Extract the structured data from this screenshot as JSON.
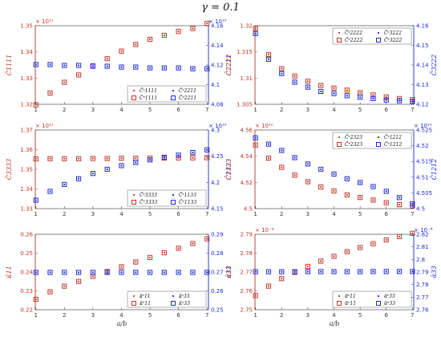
{
  "figure": {
    "title": "γ = 0.1",
    "xlabel": "a/b",
    "colors": {
      "left": "#c0392b",
      "right": "#1f2bd6",
      "axis": "#333333"
    }
  },
  "chart_data": [
    {
      "type": "scatter",
      "panel": "top-left",
      "x": [
        1,
        1.5,
        2,
        2.5,
        3,
        3.5,
        4,
        4.5,
        5,
        5.5,
        6,
        6.5,
        7
      ],
      "left_axis": {
        "label": "C̄1111",
        "ylim": [
          132000000000.0,
          135000000000.0
        ],
        "ticks": [
          "1.32",
          "1.33",
          "1.34",
          "1.35"
        ],
        "exponent": "× 10¹¹"
      },
      "right_axis": {
        "label": "C̄2211",
        "ylim": [
          40700000000.0,
          41650000000.0
        ],
        "ticks": [
          "4.08",
          "4.1",
          "4.12",
          "4.14",
          "4.16"
        ],
        "exponent": "× 10¹⁰"
      },
      "series": [
        {
          "name": "C̄ˢ1111",
          "axis": "left",
          "marker": "dot",
          "values": [
            131980000000.0,
            132430000000.0,
            132840000000.0,
            133120000000.0,
            133470000000.0,
            133740000000.0,
            134030000000.0,
            134280000000.0,
            134480000000.0,
            134630000000.0,
            134780000000.0,
            134890000000.0,
            135090000000.0
          ]
        },
        {
          "name": "C̄ᵉ1111",
          "axis": "left",
          "marker": "square",
          "values": [
            131980000000.0,
            132430000000.0,
            132840000000.0,
            133120000000.0,
            133470000000.0,
            133740000000.0,
            134030000000.0,
            134280000000.0,
            134480000000.0,
            134630000000.0,
            134780000000.0,
            134890000000.0,
            135090000000.0
          ]
        },
        {
          "name": "C̄ˢ2211",
          "axis": "right",
          "marker": "dot",
          "values": [
            41180000000.0,
            41180000000.0,
            41170000000.0,
            41170000000.0,
            41160000000.0,
            41160000000.0,
            41150000000.0,
            41150000000.0,
            41140000000.0,
            41140000000.0,
            41140000000.0,
            41130000000.0,
            41130000000.0
          ]
        },
        {
          "name": "C̄ᵉ2211",
          "axis": "right",
          "marker": "square",
          "values": [
            41180000000.0,
            41180000000.0,
            41170000000.0,
            41170000000.0,
            41160000000.0,
            41160000000.0,
            41150000000.0,
            41150000000.0,
            41140000000.0,
            41140000000.0,
            41140000000.0,
            41130000000.0,
            41130000000.0
          ]
        }
      ],
      "legend": "bottom-right"
    },
    {
      "type": "scatter",
      "panel": "top-right",
      "x": [
        1,
        1.5,
        2,
        2.5,
        3,
        3.5,
        4,
        4.5,
        5,
        5.5,
        6,
        6.5,
        7
      ],
      "left_axis": {
        "label": "C̄2222",
        "ylim": [
          130500000000.0,
          132000000000.0
        ],
        "ticks": [
          "1.305",
          "1.31",
          "1.315",
          "1.32"
        ],
        "exponent": ""
      },
      "right_axis": {
        "label": "C̄3222",
        "ylim": [
          41150000000.0,
          41700000000.0
        ],
        "ticks": [
          "4.12",
          "4.13",
          "4.14",
          "4.15",
          "4.16"
        ],
        "exponent": ""
      },
      "series": [
        {
          "name": "C̄ˢ2222",
          "axis": "left",
          "marker": "dot",
          "values": [
            131950000000.0,
            131450000000.0,
            131180000000.0,
            131040000000.0,
            130940000000.0,
            130860000000.0,
            130810000000.0,
            130770000000.0,
            130720000000.0,
            130680000000.0,
            130640000000.0,
            130610000000.0,
            130590000000.0
          ]
        },
        {
          "name": "C̄ᵉ2222",
          "axis": "left",
          "marker": "square",
          "values": [
            131950000000.0,
            131450000000.0,
            131180000000.0,
            131040000000.0,
            130940000000.0,
            130860000000.0,
            130810000000.0,
            130770000000.0,
            130720000000.0,
            130680000000.0,
            130640000000.0,
            130610000000.0,
            130590000000.0
          ]
        },
        {
          "name": "C̄ˢ3222",
          "axis": "right",
          "marker": "dot",
          "values": [
            41645000000.0,
            41465000000.0,
            41365000000.0,
            41305000000.0,
            41270000000.0,
            41240000000.0,
            41225000000.0,
            41210000000.0,
            41200000000.0,
            41190000000.0,
            41180000000.0,
            41175000000.0,
            41170000000.0
          ]
        },
        {
          "name": "C̄ᵉ3222",
          "axis": "right",
          "marker": "square",
          "values": [
            41645000000.0,
            41465000000.0,
            41365000000.0,
            41305000000.0,
            41270000000.0,
            41240000000.0,
            41225000000.0,
            41210000000.0,
            41200000000.0,
            41190000000.0,
            41180000000.0,
            41175000000.0,
            41170000000.0
          ]
        }
      ],
      "legend": "top-right"
    },
    {
      "type": "scatter",
      "panel": "middle-left",
      "x": [
        1,
        1.5,
        2,
        2.5,
        3,
        3.5,
        4,
        4.5,
        5,
        5.5,
        6,
        6.5,
        7
      ],
      "left_axis": {
        "label": "C̄3333",
        "ylim": [
          133000000000.0,
          137000000000.0
        ],
        "ticks": [
          "1.33",
          "1.34",
          "1.35",
          "1.36",
          "1.37"
        ],
        "exponent": "× 10¹¹"
      },
      "right_axis": {
        "label": "C̄1133",
        "ylim": [
          41500000000.0,
          43000000000.0
        ],
        "ticks": [
          "4.15",
          "4.2",
          "4.25",
          "4.3"
        ],
        "exponent": "× 10¹⁰"
      },
      "series": [
        {
          "name": "C̄ˢ3333",
          "axis": "left",
          "marker": "dot",
          "values": [
            135530000000.0,
            135540000000.0,
            135540000000.0,
            135540000000.0,
            135550000000.0,
            135550000000.0,
            135560000000.0,
            135560000000.0,
            135570000000.0,
            135570000000.0,
            135580000000.0,
            135580000000.0,
            135590000000.0
          ]
        },
        {
          "name": "C̄ᵉ3333",
          "axis": "left",
          "marker": "square",
          "values": [
            135530000000.0,
            135540000000.0,
            135540000000.0,
            135540000000.0,
            135550000000.0,
            135550000000.0,
            135560000000.0,
            135560000000.0,
            135570000000.0,
            135570000000.0,
            135580000000.0,
            135580000000.0,
            135590000000.0
          ]
        },
        {
          "name": "C̄ˢ1133",
          "axis": "right",
          "marker": "dot",
          "values": [
            41660000000.0,
            41830000000.0,
            41960000000.0,
            42070000000.0,
            42170000000.0,
            42250000000.0,
            42320000000.0,
            42380000000.0,
            42430000000.0,
            42480000000.0,
            42520000000.0,
            42570000000.0,
            42620000000.0
          ]
        },
        {
          "name": "C̄ᵉ1133",
          "axis": "right",
          "marker": "square",
          "values": [
            41660000000.0,
            41830000000.0,
            41960000000.0,
            42070000000.0,
            42170000000.0,
            42250000000.0,
            42320000000.0,
            42380000000.0,
            42430000000.0,
            42480000000.0,
            42520000000.0,
            42570000000.0,
            42620000000.0
          ]
        }
      ],
      "legend": "bottom-right"
    },
    {
      "type": "scatter",
      "panel": "middle-right",
      "x": [
        1,
        1.5,
        2,
        2.5,
        3,
        3.5,
        4,
        4.5,
        5,
        5.5,
        6,
        6.5,
        7
      ],
      "left_axis": {
        "label": "C̄2323",
        "ylim": [
          45000000000.0,
          45600000000.0
        ],
        "ticks": [
          "4.5",
          "4.52",
          "4.54",
          "4.56"
        ],
        "exponent": "× 10¹⁰"
      },
      "right_axis": {
        "label": "C̄1212",
        "ylim": [
          45000000000.0,
          45250000000.0
        ],
        "ticks": [
          "4.5",
          "4.505",
          "4.51",
          "4.515",
          "4.52",
          "4.525"
        ],
        "exponent": "× 10¹⁰"
      },
      "series": [
        {
          "name": "C̄ˢ2323",
          "axis": "left",
          "marker": "dot",
          "values": [
            45485000000.0,
            45385000000.0,
            45315000000.0,
            45255000000.0,
            45205000000.0,
            45165000000.0,
            45135000000.0,
            45105000000.0,
            45085000000.0,
            45065000000.0,
            45045000000.0,
            45030000000.0,
            45020000000.0
          ]
        },
        {
          "name": "C̄ᵉ2323",
          "axis": "left",
          "marker": "square",
          "values": [
            45485000000.0,
            45385000000.0,
            45315000000.0,
            45255000000.0,
            45205000000.0,
            45165000000.0,
            45135000000.0,
            45105000000.0,
            45085000000.0,
            45065000000.0,
            45045000000.0,
            45030000000.0,
            45020000000.0
          ]
        },
        {
          "name": "C̄ˢ1212",
          "axis": "right",
          "marker": "dot",
          "values": [
            45225000000.0,
            45205000000.0,
            45185000000.0,
            45162000000.0,
            45142000000.0,
            45125000000.0,
            45110000000.0,
            45095000000.0,
            45083000000.0,
            45070000000.0,
            45055000000.0,
            45035000000.0,
            45015000000.0
          ]
        },
        {
          "name": "C̄ᵉ1212",
          "axis": "right",
          "marker": "square",
          "values": [
            45225000000.0,
            45205000000.0,
            45185000000.0,
            45162000000.0,
            45142000000.0,
            45125000000.0,
            45110000000.0,
            45095000000.0,
            45083000000.0,
            45070000000.0,
            45055000000.0,
            45035000000.0,
            45015000000.0
          ]
        }
      ],
      "legend": "top-right"
    },
    {
      "type": "scatter",
      "panel": "bottom-left",
      "x": [
        1,
        1.5,
        2,
        2.5,
        3,
        3.5,
        4,
        4.5,
        5,
        5.5,
        6,
        6.5,
        7
      ],
      "left_axis": {
        "label": "κ̄11",
        "ylim": [
          0.22,
          0.26
        ],
        "ticks": [
          "0.22",
          "0.23",
          "0.24",
          "0.25",
          "0.26"
        ],
        "exponent": ""
      },
      "right_axis": {
        "label": "κ̄33",
        "ylim": [
          0.25,
          0.29
        ],
        "ticks": [
          "0.25",
          "0.26",
          "0.27",
          "0.28",
          "0.29"
        ],
        "exponent": ""
      },
      "series": [
        {
          "name": "κ̄ˢ11",
          "axis": "left",
          "marker": "dot",
          "values": [
            0.2255,
            0.2295,
            0.2325,
            0.235,
            0.2377,
            0.2403,
            0.2428,
            0.2453,
            0.2477,
            0.2502,
            0.2526,
            0.2551,
            0.2576
          ]
        },
        {
          "name": "κ̄ᵉ11",
          "axis": "left",
          "marker": "square",
          "values": [
            0.2255,
            0.2295,
            0.2325,
            0.235,
            0.2377,
            0.2403,
            0.2428,
            0.2453,
            0.2477,
            0.2502,
            0.2526,
            0.2551,
            0.2576
          ]
        },
        {
          "name": "κ̄ˢ33",
          "axis": "right",
          "marker": "dot",
          "values": [
            0.2698,
            0.2698,
            0.2698,
            0.2698,
            0.2698,
            0.2698,
            0.2698,
            0.2698,
            0.2698,
            0.2698,
            0.2698,
            0.2698,
            0.2698
          ]
        },
        {
          "name": "κ̄ᵉ33",
          "axis": "right",
          "marker": "square",
          "values": [
            0.2698,
            0.2698,
            0.2698,
            0.2698,
            0.2698,
            0.2698,
            0.2698,
            0.2698,
            0.2698,
            0.2698,
            0.2698,
            0.2698,
            0.2698
          ]
        }
      ],
      "legend": "bottom-right"
    },
    {
      "type": "scatter",
      "panel": "bottom-right",
      "x": [
        1,
        1.5,
        2,
        2.5,
        3,
        3.5,
        4,
        4.5,
        5,
        5.5,
        6,
        6.5,
        7
      ],
      "left_axis": {
        "label": "ᾱ11",
        "ylim": [
          2.75e-06,
          2.79e-06
        ],
        "ticks": [
          "2.75",
          "2.76",
          "2.77",
          "2.78",
          "2.79"
        ],
        "exponent": "× 10⁻⁶"
      },
      "right_axis": {
        "label": "ᾱ33",
        "ylim": [
          2.76e-06,
          2.82e-06
        ],
        "ticks": [
          "2.76",
          "2.77",
          "2.78",
          "2.79",
          "2.8",
          "2.81",
          "2.82"
        ],
        "exponent": "× 10⁻⁶"
      },
      "series": [
        {
          "name": "ᾱˢ11",
          "axis": "left",
          "marker": "dot",
          "values": [
            2.7575e-06,
            2.7625e-06,
            2.7665e-06,
            2.7698e-06,
            2.773e-06,
            2.7758e-06,
            2.7783e-06,
            2.7808e-06,
            2.783e-06,
            2.785e-06,
            2.787e-06,
            2.7888e-06,
            2.7905e-06
          ]
        },
        {
          "name": "ᾱᵉ11",
          "axis": "left",
          "marker": "square",
          "values": [
            2.7575e-06,
            2.7625e-06,
            2.7665e-06,
            2.7698e-06,
            2.773e-06,
            2.7758e-06,
            2.7783e-06,
            2.7808e-06,
            2.783e-06,
            2.785e-06,
            2.787e-06,
            2.7888e-06,
            2.7905e-06
          ]
        },
        {
          "name": "ᾱˢ33",
          "axis": "right",
          "marker": "dot",
          "values": [
            2.7902e-06,
            2.7902e-06,
            2.7902e-06,
            2.7902e-06,
            2.7903e-06,
            2.7903e-06,
            2.7903e-06,
            2.7903e-06,
            2.7903e-06,
            2.7904e-06,
            2.7904e-06,
            2.7904e-06,
            2.7904e-06
          ]
        },
        {
          "name": "ᾱᵉ33",
          "axis": "right",
          "marker": "square",
          "values": [
            2.7902e-06,
            2.7902e-06,
            2.7902e-06,
            2.7902e-06,
            2.7903e-06,
            2.7903e-06,
            2.7903e-06,
            2.7903e-06,
            2.7903e-06,
            2.7904e-06,
            2.7904e-06,
            2.7904e-06,
            2.7904e-06
          ]
        }
      ],
      "legend": "bottom-right"
    }
  ]
}
